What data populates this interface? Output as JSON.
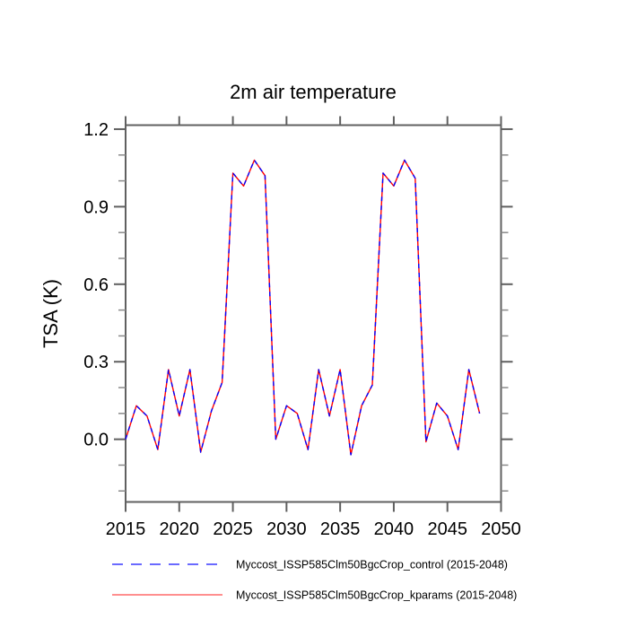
{
  "page": {
    "background": "#ffffff",
    "frame_color": "#606060",
    "minor_tick_color": "#8a8a8a",
    "text_color": "#000000"
  },
  "chart_data": {
    "type": "line",
    "title": "2m air temperature",
    "xlabel": "",
    "ylabel": "TSA (K)",
    "x": [
      2015,
      2016,
      2017,
      2018,
      2019,
      2020,
      2021,
      2022,
      2023,
      2024,
      2025,
      2026,
      2027,
      2028,
      2029,
      2030,
      2031,
      2032,
      2033,
      2034,
      2035,
      2036,
      2037,
      2038,
      2039,
      2040,
      2041,
      2042,
      2043,
      2044,
      2045,
      2046,
      2047,
      2048
    ],
    "series": [
      {
        "name": "Myccost_ISSP585Clm50BgcCrop_control (2015-2048)",
        "color": "#0000ff",
        "style": "dashed",
        "values": [
          0.0,
          0.13,
          0.09,
          -0.04,
          0.27,
          0.09,
          0.27,
          -0.05,
          0.11,
          0.22,
          1.03,
          0.98,
          1.08,
          1.02,
          0.0,
          0.13,
          0.1,
          -0.04,
          0.27,
          0.09,
          0.27,
          -0.06,
          0.13,
          0.21,
          1.03,
          0.98,
          1.08,
          1.01,
          -0.01,
          0.14,
          0.09,
          -0.04,
          0.27,
          0.1
        ]
      },
      {
        "name": "Myccost_ISSP585Clm50BgcCrop_kparams (2015-2048)",
        "color": "#ff0000",
        "style": "solid",
        "values": [
          0.0,
          0.13,
          0.09,
          -0.04,
          0.27,
          0.09,
          0.27,
          -0.05,
          0.11,
          0.22,
          1.03,
          0.98,
          1.08,
          1.02,
          0.0,
          0.13,
          0.1,
          -0.04,
          0.27,
          0.09,
          0.27,
          -0.06,
          0.13,
          0.21,
          1.03,
          0.98,
          1.08,
          1.01,
          -0.01,
          0.14,
          0.09,
          -0.04,
          0.27,
          0.1
        ]
      }
    ],
    "xlim": [
      2015,
      2050
    ],
    "ylim": [
      -0.2425,
      1.2155
    ],
    "xticks": [
      2015,
      2020,
      2025,
      2030,
      2035,
      2040,
      2045,
      2050
    ],
    "xtick_labels": [
      "2015",
      "2020",
      "2025",
      "2030",
      "2035",
      "2040",
      "2045",
      "2050"
    ],
    "yticks_major": [
      0.0,
      0.3,
      0.6,
      0.9,
      1.2
    ],
    "ytick_labels": [
      "0.0",
      "0.3",
      "0.6",
      "0.9",
      "1.2"
    ],
    "yticks_minor": [
      -0.2,
      -0.1,
      0.1,
      0.2,
      0.4,
      0.5,
      0.7,
      0.8,
      1.0,
      1.1
    ],
    "grid": false,
    "legend_position": "bottom"
  }
}
